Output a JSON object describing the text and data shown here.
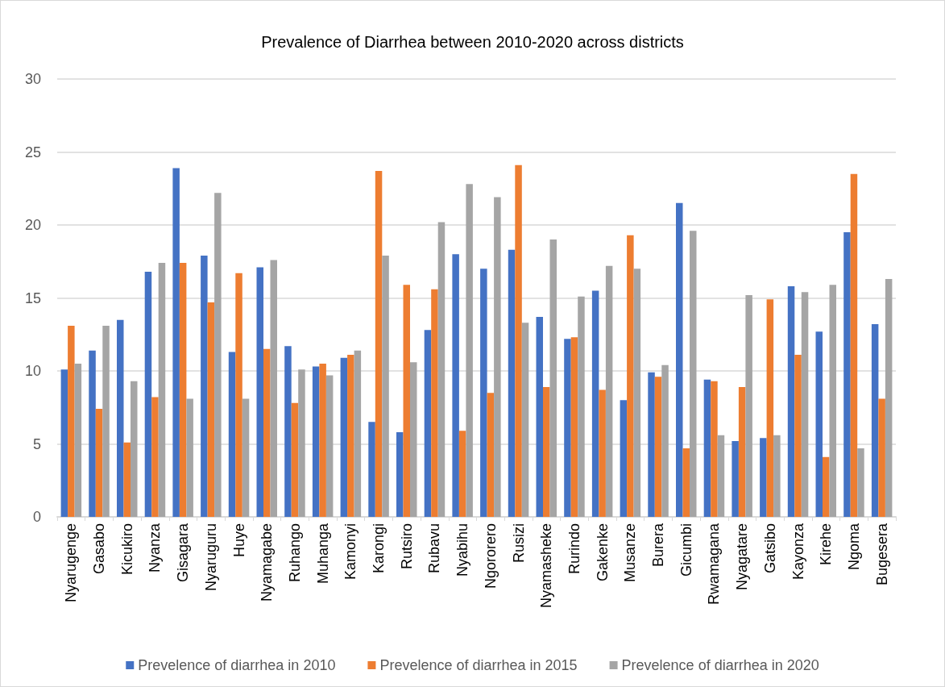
{
  "chart_data": {
    "type": "bar",
    "title": "Prevalence of Diarrhea between 2010-2020 across districts",
    "categories": [
      "Nyarugenge",
      "Gasabo",
      "Kicukiro",
      "Nyanza",
      "Gisagara",
      "Nyaruguru",
      "Huye",
      "Nyamagabe",
      "Ruhango",
      "Muhanga",
      "Kamonyi",
      "Karongi",
      "Rutsiro",
      "Rubavu",
      "Nyabihu",
      "Ngororero",
      "Rusizi",
      "Nyamasheke",
      "Rurindo",
      "Gakenke",
      "Musanze",
      "Burera",
      "Gicumbi",
      "Rwamagana",
      "Nyagatare",
      "Gatsibo",
      "Kayonza",
      "Kirehe",
      "Ngoma",
      "Bugesera"
    ],
    "series": [
      {
        "name": "Prevelence of diarrhea in 2010",
        "color": "#4472c4",
        "values": [
          10.1,
          11.4,
          13.5,
          16.8,
          23.9,
          17.9,
          11.3,
          17.1,
          11.7,
          10.3,
          10.9,
          6.5,
          5.8,
          12.8,
          18.0,
          17.0,
          18.3,
          13.7,
          12.2,
          15.5,
          8.0,
          9.9,
          21.5,
          9.4,
          5.2,
          5.4,
          15.8,
          12.7,
          19.5,
          13.2
        ]
      },
      {
        "name": "Prevelence of diarrhea in 2015",
        "color": "#ed7d31",
        "values": [
          13.1,
          7.4,
          5.1,
          8.2,
          17.4,
          14.7,
          16.7,
          11.5,
          7.8,
          10.5,
          11.1,
          23.7,
          15.9,
          15.6,
          5.9,
          8.5,
          24.1,
          8.9,
          12.3,
          8.7,
          19.3,
          9.6,
          4.7,
          9.3,
          8.9,
          14.9,
          11.1,
          4.1,
          23.5,
          8.1
        ]
      },
      {
        "name": "Prevelence of diarrhea in 2020",
        "color": "#a5a5a5",
        "values": [
          10.5,
          13.1,
          9.3,
          17.4,
          8.1,
          22.2,
          8.1,
          17.6,
          10.1,
          9.7,
          11.4,
          17.9,
          10.6,
          20.2,
          22.8,
          21.9,
          13.3,
          19.0,
          15.1,
          17.2,
          17.0,
          10.4,
          19.6,
          5.6,
          15.2,
          5.6,
          15.4,
          15.9,
          4.7,
          16.3
        ]
      }
    ],
    "ylim": [
      0,
      30
    ],
    "yticks": [
      0,
      5,
      10,
      15,
      20,
      25,
      30
    ],
    "grid": "y",
    "legend": "bottom"
  }
}
